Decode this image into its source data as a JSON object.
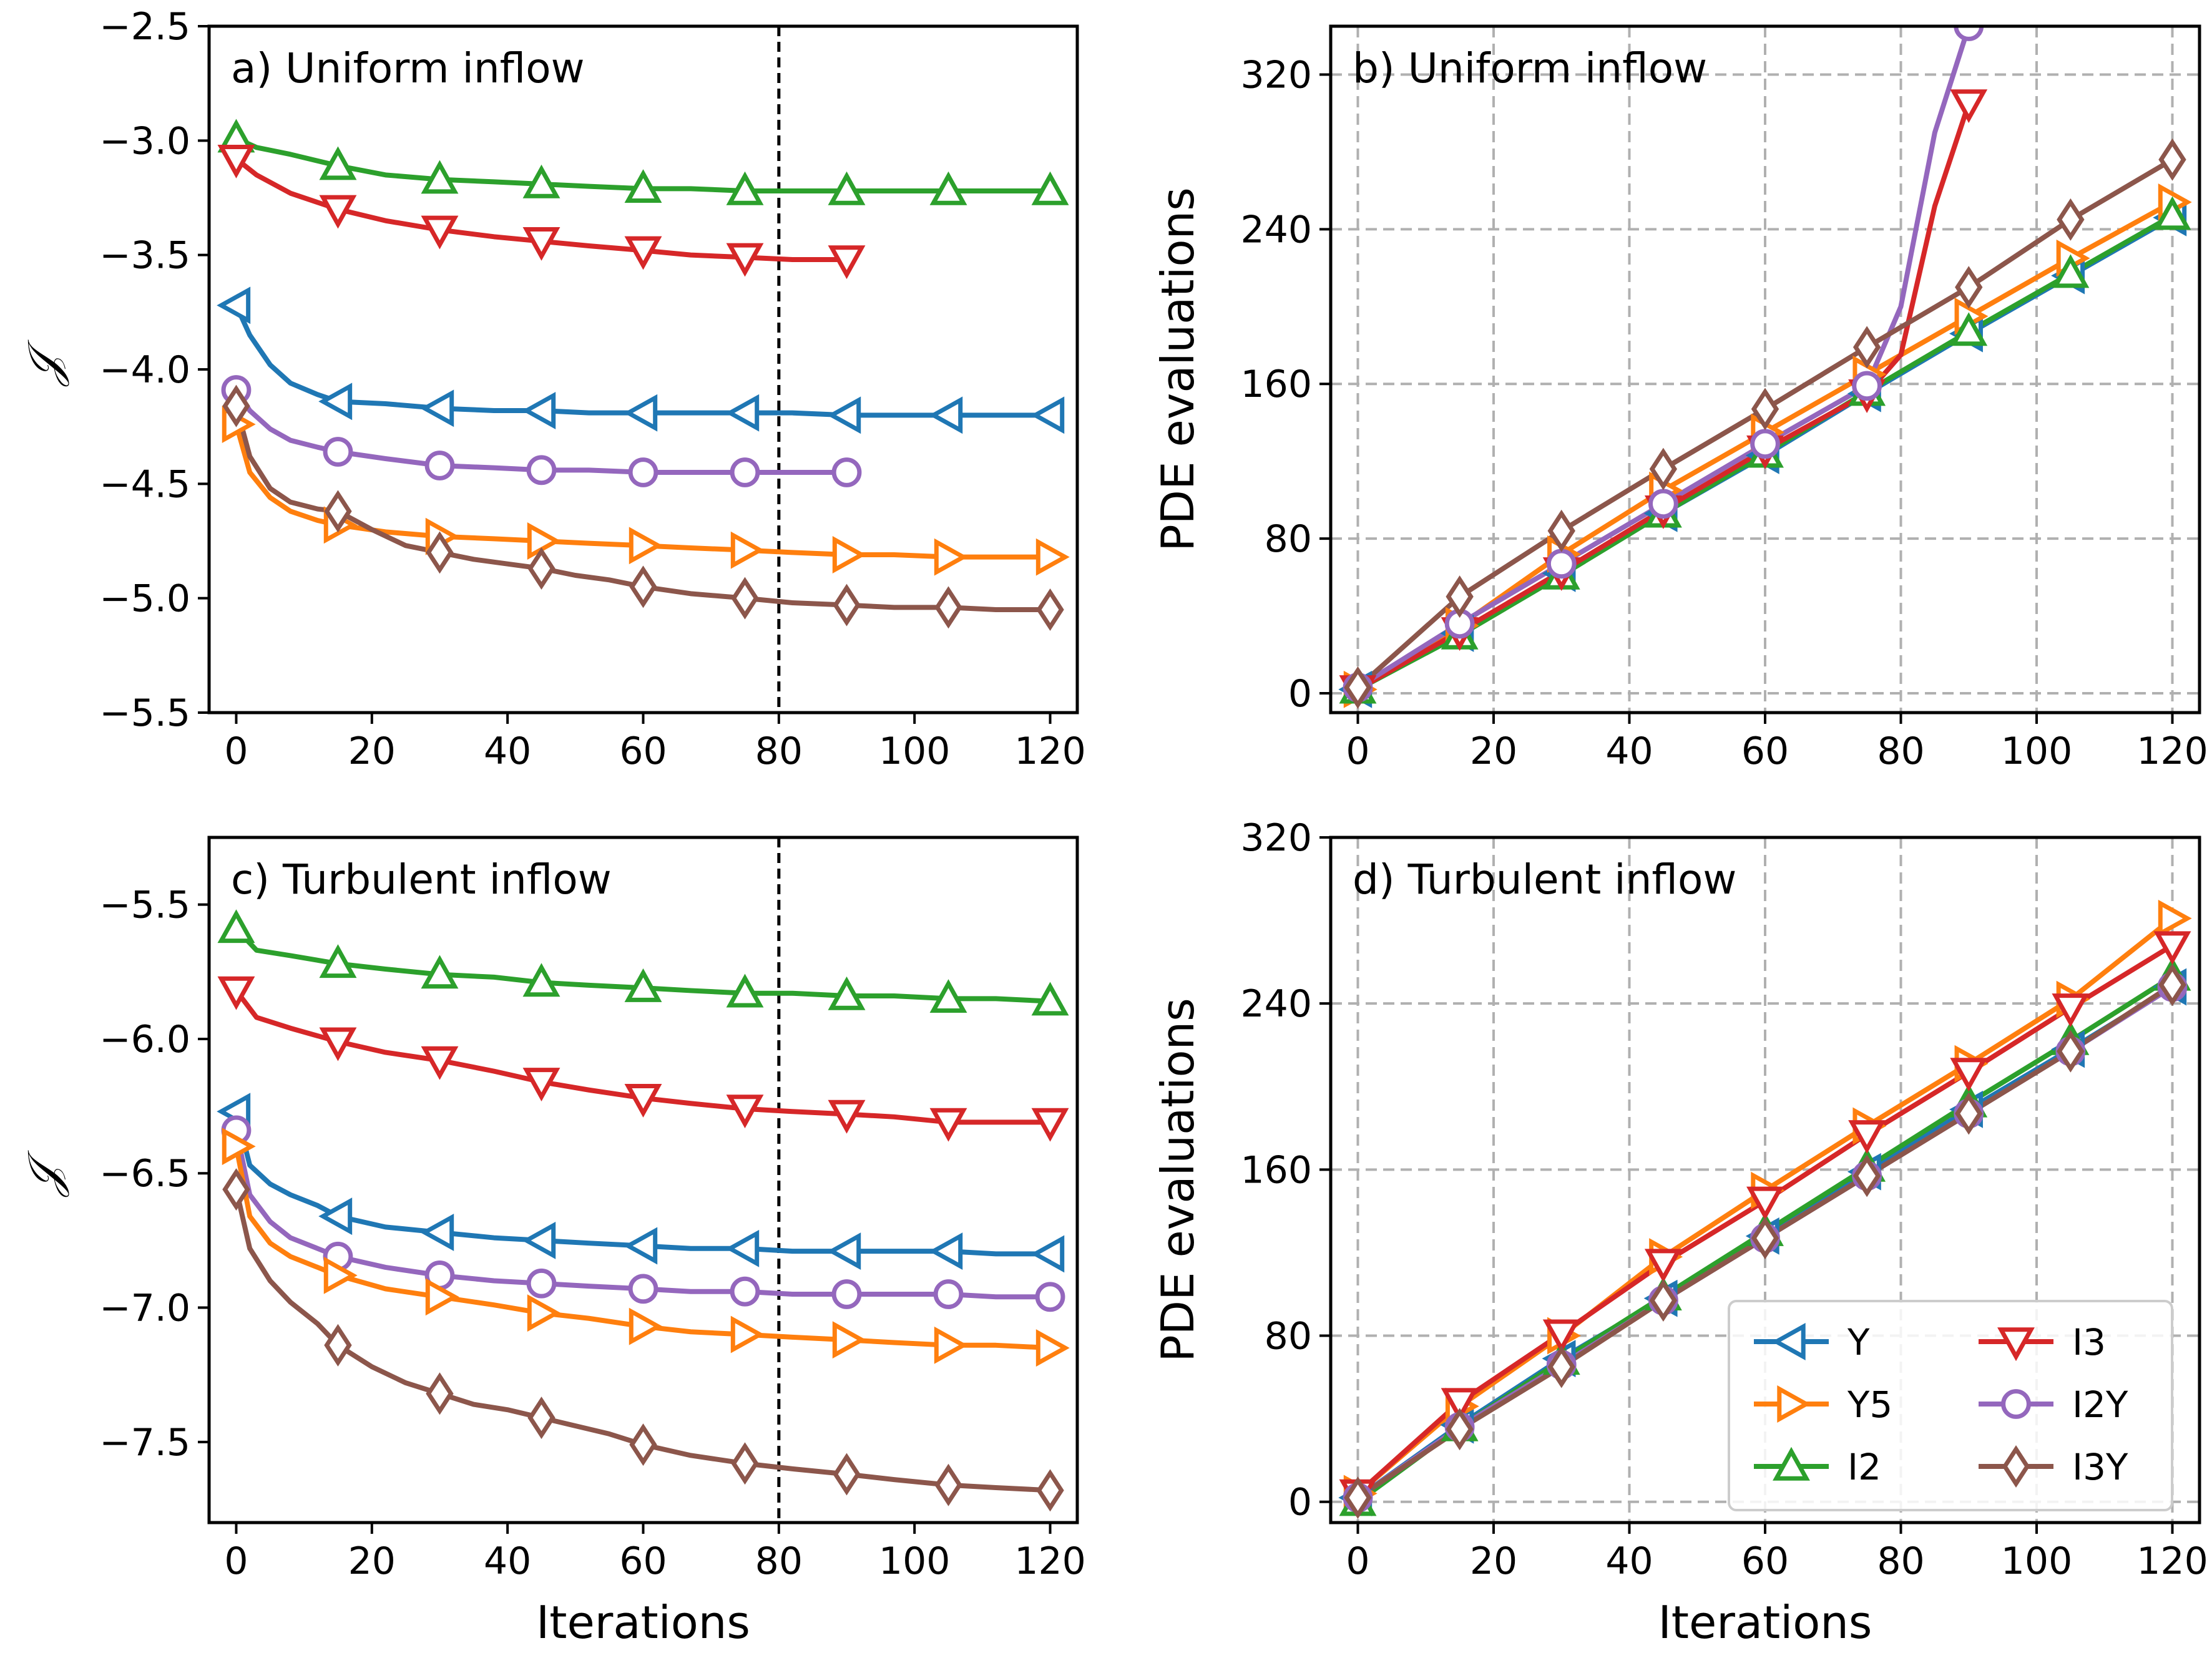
{
  "colors": {
    "Y": "#1f77b4",
    "Y5": "#ff7f0e",
    "I2": "#2ca02c",
    "I3": "#d62728",
    "I2Y": "#9467bd",
    "I3Y": "#8c564b",
    "grid": "#b0b0b0",
    "vline": "#000000"
  },
  "legend": {
    "placement": "lower-right (panel d)",
    "items": [
      {
        "key": "Y",
        "label": "Y",
        "marker": "triangle-left"
      },
      {
        "key": "Y5",
        "label": "Y5",
        "marker": "triangle-right"
      },
      {
        "key": "I2",
        "label": "I2",
        "marker": "triangle-up"
      },
      {
        "key": "I3",
        "label": "I3",
        "marker": "triangle-down"
      },
      {
        "key": "I2Y",
        "label": "I2Y",
        "marker": "circle"
      },
      {
        "key": "I3Y",
        "label": "I3Y",
        "marker": "diamond"
      }
    ]
  },
  "chart_data": [
    {
      "id": "a",
      "type": "line",
      "title": "a) Uniform inflow",
      "xlabel": "",
      "ylabel": "𝒥",
      "xlim": [
        -4,
        124
      ],
      "ylim": [
        -5.5,
        -2.5
      ],
      "xticks": [
        0,
        20,
        40,
        60,
        80,
        100,
        120
      ],
      "yticks": [
        -5.5,
        -5.0,
        -4.5,
        -4.0,
        -3.5,
        -3.0,
        -2.5
      ],
      "ytick_labels": [
        "−5.5",
        "−5.0",
        "−4.5",
        "−4.0",
        "−3.5",
        "−3.0",
        "−2.5"
      ],
      "grid": false,
      "vline": 80,
      "series": [
        {
          "key": "I2",
          "name": "I2",
          "marker": "triangle-up",
          "x": [
            0,
            3,
            8,
            15,
            22,
            30,
            38,
            45,
            52,
            60,
            67,
            75,
            82,
            90,
            97,
            105,
            112,
            120
          ],
          "y": [
            -2.99,
            -3.03,
            -3.06,
            -3.11,
            -3.15,
            -3.17,
            -3.18,
            -3.19,
            -3.2,
            -3.21,
            -3.21,
            -3.22,
            -3.22,
            -3.22,
            -3.22,
            -3.22,
            -3.22,
            -3.22
          ]
        },
        {
          "key": "I3",
          "name": "I3",
          "marker": "triangle-down",
          "x": [
            0,
            3,
            8,
            15,
            22,
            30,
            38,
            45,
            52,
            60,
            67,
            75,
            82,
            90
          ],
          "y": [
            -3.08,
            -3.15,
            -3.23,
            -3.3,
            -3.35,
            -3.39,
            -3.42,
            -3.44,
            -3.46,
            -3.48,
            -3.5,
            -3.51,
            -3.52,
            -3.52
          ]
        },
        {
          "key": "Y",
          "name": "Y",
          "marker": "triangle-left",
          "x": [
            0,
            2,
            5,
            8,
            12,
            15,
            22,
            30,
            38,
            45,
            52,
            60,
            67,
            75,
            82,
            90,
            97,
            105,
            112,
            120
          ],
          "y": [
            -3.72,
            -3.85,
            -3.98,
            -4.06,
            -4.11,
            -4.14,
            -4.15,
            -4.17,
            -4.18,
            -4.18,
            -4.19,
            -4.19,
            -4.19,
            -4.19,
            -4.19,
            -4.2,
            -4.2,
            -4.2,
            -4.2,
            -4.2
          ]
        },
        {
          "key": "I2Y",
          "name": "I2Y",
          "marker": "circle",
          "x": [
            0,
            2,
            5,
            8,
            12,
            15,
            22,
            30,
            38,
            45,
            52,
            60,
            67,
            75,
            82,
            90
          ],
          "y": [
            -4.09,
            -4.18,
            -4.26,
            -4.31,
            -4.34,
            -4.36,
            -4.39,
            -4.42,
            -4.43,
            -4.44,
            -4.44,
            -4.45,
            -4.45,
            -4.45,
            -4.45,
            -4.45
          ]
        },
        {
          "key": "Y5",
          "name": "Y5",
          "marker": "triangle-right",
          "x": [
            0,
            2,
            5,
            8,
            12,
            15,
            22,
            30,
            38,
            45,
            52,
            60,
            67,
            75,
            82,
            90,
            97,
            105,
            112,
            120
          ],
          "y": [
            -4.24,
            -4.45,
            -4.56,
            -4.62,
            -4.66,
            -4.68,
            -4.71,
            -4.73,
            -4.74,
            -4.75,
            -4.76,
            -4.77,
            -4.78,
            -4.79,
            -4.8,
            -4.81,
            -4.81,
            -4.82,
            -4.82,
            -4.82
          ]
        },
        {
          "key": "I3Y",
          "name": "I3Y",
          "marker": "diamond",
          "x": [
            0,
            2,
            5,
            8,
            12,
            15,
            20,
            25,
            30,
            35,
            40,
            45,
            50,
            55,
            60,
            67,
            75,
            82,
            90,
            97,
            105,
            112,
            120
          ],
          "y": [
            -4.16,
            -4.38,
            -4.52,
            -4.58,
            -4.61,
            -4.62,
            -4.7,
            -4.77,
            -4.8,
            -4.83,
            -4.85,
            -4.87,
            -4.9,
            -4.92,
            -4.95,
            -4.98,
            -5.0,
            -5.02,
            -5.03,
            -5.04,
            -5.04,
            -5.05,
            -5.05
          ]
        }
      ]
    },
    {
      "id": "b",
      "type": "line",
      "title": "b) Uniform inflow",
      "xlabel": "",
      "ylabel": "PDE evaluations",
      "xlim": [
        -4,
        124
      ],
      "ylim": [
        -10,
        345
      ],
      "xticks": [
        0,
        20,
        40,
        60,
        80,
        100,
        120
      ],
      "yticks": [
        0,
        80,
        160,
        240,
        320
      ],
      "ytick_labels": [
        "0",
        "80",
        "160",
        "240",
        "320"
      ],
      "grid": true,
      "series": [
        {
          "key": "Y",
          "name": "Y",
          "marker": "triangle-left",
          "x": [
            0,
            15,
            30,
            45,
            60,
            75,
            90,
            105,
            120
          ],
          "y": [
            2,
            31,
            62,
            93,
            123,
            155,
            186,
            216,
            246
          ]
        },
        {
          "key": "Y5",
          "name": "Y5",
          "marker": "triangle-right",
          "x": [
            0,
            15,
            30,
            45,
            60,
            75,
            90,
            105,
            120
          ],
          "y": [
            2,
            35,
            72,
            105,
            135,
            165,
            195,
            225,
            254
          ]
        },
        {
          "key": "I2",
          "name": "I2",
          "marker": "triangle-up",
          "x": [
            0,
            15,
            30,
            45,
            60,
            75,
            90,
            105,
            120
          ],
          "y": [
            2,
            30,
            61,
            93,
            124,
            156,
            187,
            217,
            247
          ]
        },
        {
          "key": "I3",
          "name": "I3",
          "marker": "triangle-down",
          "x": [
            0,
            15,
            30,
            45,
            60,
            75,
            80,
            85,
            90
          ],
          "y": [
            2,
            32,
            63,
            95,
            126,
            155,
            175,
            252,
            305
          ]
        },
        {
          "key": "I2Y",
          "name": "I2Y",
          "marker": "circle",
          "x": [
            0,
            15,
            30,
            45,
            60,
            75,
            80,
            85,
            90
          ],
          "y": [
            3,
            36,
            67,
            98,
            129,
            159,
            200,
            290,
            345
          ]
        },
        {
          "key": "I3Y",
          "name": "I3Y",
          "marker": "diamond",
          "x": [
            0,
            15,
            30,
            45,
            60,
            75,
            90,
            105,
            120
          ],
          "y": [
            3,
            50,
            84,
            116,
            147,
            179,
            210,
            245,
            276
          ]
        }
      ]
    },
    {
      "id": "c",
      "type": "line",
      "title": "c) Turbulent inflow",
      "xlabel": "Iterations",
      "ylabel": "𝒥",
      "xlim": [
        -4,
        124
      ],
      "ylim": [
        -7.8,
        -5.25
      ],
      "xticks": [
        0,
        20,
        40,
        60,
        80,
        100,
        120
      ],
      "yticks": [
        -7.5,
        -7.0,
        -6.5,
        -6.0,
        -5.5
      ],
      "ytick_labels": [
        "−7.5",
        "−7.0",
        "−6.5",
        "−6.0",
        "−5.5"
      ],
      "grid": false,
      "vline": 80,
      "series": [
        {
          "key": "I2",
          "name": "I2",
          "marker": "triangle-up",
          "x": [
            0,
            3,
            8,
            15,
            22,
            30,
            38,
            45,
            52,
            60,
            67,
            75,
            82,
            90,
            97,
            105,
            112,
            120
          ],
          "y": [
            -5.59,
            -5.67,
            -5.69,
            -5.72,
            -5.74,
            -5.76,
            -5.77,
            -5.79,
            -5.8,
            -5.81,
            -5.82,
            -5.83,
            -5.83,
            -5.84,
            -5.84,
            -5.85,
            -5.85,
            -5.86
          ]
        },
        {
          "key": "I3",
          "name": "I3",
          "marker": "triangle-down",
          "x": [
            0,
            3,
            8,
            15,
            22,
            30,
            38,
            45,
            52,
            60,
            67,
            75,
            82,
            90,
            97,
            105,
            112,
            120
          ],
          "y": [
            -5.82,
            -5.92,
            -5.96,
            -6.01,
            -6.05,
            -6.08,
            -6.12,
            -6.16,
            -6.19,
            -6.22,
            -6.24,
            -6.26,
            -6.27,
            -6.28,
            -6.29,
            -6.31,
            -6.31,
            -6.31
          ]
        },
        {
          "key": "Y",
          "name": "Y",
          "marker": "triangle-left",
          "x": [
            0,
            2,
            5,
            8,
            12,
            15,
            22,
            30,
            38,
            45,
            52,
            60,
            67,
            75,
            82,
            90,
            97,
            105,
            112,
            120
          ],
          "y": [
            -6.27,
            -6.47,
            -6.54,
            -6.58,
            -6.62,
            -6.66,
            -6.7,
            -6.72,
            -6.74,
            -6.75,
            -6.76,
            -6.77,
            -6.78,
            -6.78,
            -6.79,
            -6.79,
            -6.79,
            -6.79,
            -6.8,
            -6.8
          ]
        },
        {
          "key": "I2Y",
          "name": "I2Y",
          "marker": "circle",
          "x": [
            0,
            2,
            5,
            8,
            12,
            15,
            22,
            30,
            38,
            45,
            52,
            60,
            67,
            75,
            82,
            90,
            97,
            105,
            112,
            120
          ],
          "y": [
            -6.34,
            -6.58,
            -6.68,
            -6.74,
            -6.78,
            -6.81,
            -6.85,
            -6.88,
            -6.9,
            -6.91,
            -6.92,
            -6.93,
            -6.94,
            -6.94,
            -6.95,
            -6.95,
            -6.95,
            -6.95,
            -6.96,
            -6.96
          ]
        },
        {
          "key": "Y5",
          "name": "Y5",
          "marker": "triangle-right",
          "x": [
            0,
            2,
            5,
            8,
            12,
            15,
            22,
            30,
            38,
            45,
            52,
            60,
            67,
            75,
            82,
            90,
            97,
            105,
            112,
            120
          ],
          "y": [
            -6.4,
            -6.66,
            -6.76,
            -6.81,
            -6.85,
            -6.88,
            -6.93,
            -6.96,
            -6.99,
            -7.02,
            -7.04,
            -7.07,
            -7.09,
            -7.1,
            -7.11,
            -7.12,
            -7.13,
            -7.14,
            -7.14,
            -7.15
          ]
        },
        {
          "key": "I3Y",
          "name": "I3Y",
          "marker": "diamond",
          "x": [
            0,
            2,
            5,
            8,
            12,
            15,
            20,
            25,
            30,
            35,
            40,
            45,
            50,
            55,
            60,
            67,
            75,
            82,
            90,
            97,
            105,
            112,
            120
          ],
          "y": [
            -6.56,
            -6.78,
            -6.9,
            -6.98,
            -7.06,
            -7.14,
            -7.22,
            -7.28,
            -7.32,
            -7.36,
            -7.38,
            -7.41,
            -7.44,
            -7.47,
            -7.51,
            -7.55,
            -7.58,
            -7.6,
            -7.62,
            -7.64,
            -7.66,
            -7.67,
            -7.68
          ]
        }
      ]
    },
    {
      "id": "d",
      "type": "line",
      "title": "d) Turbulent inflow",
      "xlabel": "Iterations",
      "ylabel": "PDE evaluations",
      "xlim": [
        -4,
        124
      ],
      "ylim": [
        -10,
        320
      ],
      "xticks": [
        0,
        20,
        40,
        60,
        80,
        100,
        120
      ],
      "yticks": [
        0,
        80,
        160,
        240,
        320
      ],
      "ytick_labels": [
        "0",
        "80",
        "160",
        "240",
        "320"
      ],
      "grid": true,
      "legend": true,
      "series": [
        {
          "key": "Y",
          "name": "Y",
          "marker": "triangle-left",
          "x": [
            0,
            15,
            30,
            45,
            60,
            75,
            90,
            105,
            120
          ],
          "y": [
            2,
            37,
            69,
            98,
            128,
            159,
            189,
            218,
            248
          ]
        },
        {
          "key": "Y5",
          "name": "Y5",
          "marker": "triangle-right",
          "x": [
            0,
            15,
            30,
            45,
            60,
            75,
            90,
            105,
            120
          ],
          "y": [
            4,
            46,
            80,
            118,
            150,
            181,
            211,
            242,
            281
          ]
        },
        {
          "key": "I2",
          "name": "I2",
          "marker": "triangle-up",
          "x": [
            0,
            15,
            30,
            45,
            60,
            75,
            90,
            105,
            120
          ],
          "y": [
            0,
            36,
            68,
            99,
            130,
            161,
            192,
            222,
            253
          ]
        },
        {
          "key": "I3",
          "name": "I3",
          "marker": "triangle-down",
          "x": [
            0,
            15,
            30,
            45,
            60,
            75,
            90,
            105,
            120
          ],
          "y": [
            4,
            48,
            81,
            115,
            145,
            177,
            207,
            238,
            268
          ]
        },
        {
          "key": "I2Y",
          "name": "I2Y",
          "marker": "circle",
          "x": [
            0,
            15,
            30,
            45,
            60,
            75,
            90,
            105,
            120
          ],
          "y": [
            2,
            36,
            66,
            97,
            127,
            157,
            187,
            217,
            248
          ]
        },
        {
          "key": "I3Y",
          "name": "I3Y",
          "marker": "diamond",
          "x": [
            0,
            15,
            30,
            45,
            60,
            75,
            90,
            105,
            120
          ],
          "y": [
            2,
            35,
            65,
            97,
            127,
            157,
            187,
            217,
            249
          ]
        }
      ]
    }
  ]
}
